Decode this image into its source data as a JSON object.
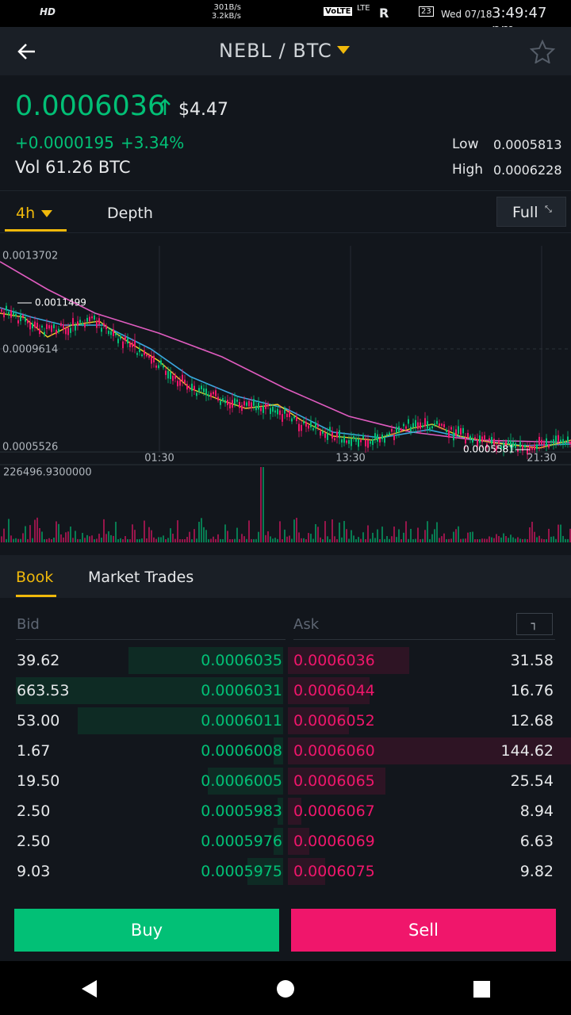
{
  "status": {
    "hd": "HD",
    "net_up": "301B/s",
    "net_down": "3.2kB/s",
    "volte": "VoLTE",
    "lte": "LTE",
    "roaming": "R",
    "battery": "23",
    "date": "Wed 07/18",
    "time": "3:49:47 pm"
  },
  "header": {
    "pair": "NEBL / BTC"
  },
  "ticker": {
    "price": "0.0006036",
    "usd": "$4.47",
    "change": "+0.0000195",
    "change_pct": "+3.34%",
    "volume": "Vol 61.26 BTC",
    "low_label": "Low",
    "low": "0.0005813",
    "high_label": "High",
    "high": "0.0006228"
  },
  "chart_tabs": {
    "interval": "4h",
    "depth": "Depth",
    "full": "Full"
  },
  "chart": {
    "price_labels": [
      "0.0013702",
      "0.0009614",
      "0.0005526"
    ],
    "max_marker": "0.0011499",
    "min_marker": "0.0005581",
    "time_labels": [
      "01:30",
      "13:30",
      "21:30"
    ],
    "volume_label": "226496.9300000"
  },
  "book_tabs": [
    "Book",
    "Market Trades"
  ],
  "book": {
    "bid_header": "Bid",
    "ask_header": "Ask",
    "rows": [
      [
        "39.62",
        "0.0006035",
        "0.0006036",
        "31.58"
      ],
      [
        "663.53",
        "0.0006031",
        "0.0006044",
        "16.76"
      ],
      [
        "53.00",
        "0.0006011",
        "0.0006052",
        "12.68"
      ],
      [
        "1.67",
        "0.0006008",
        "0.0006060",
        "144.62"
      ],
      [
        "19.50",
        "0.0006005",
        "0.0006065",
        "25.54"
      ],
      [
        "2.50",
        "0.0005983",
        "0.0006067",
        "8.94"
      ],
      [
        "2.50",
        "0.0005976",
        "0.0006069",
        "6.63"
      ],
      [
        "9.03",
        "0.0005975",
        "0.0006075",
        "9.82"
      ]
    ]
  },
  "actions": {
    "buy": "Buy",
    "sell": "Sell"
  }
}
